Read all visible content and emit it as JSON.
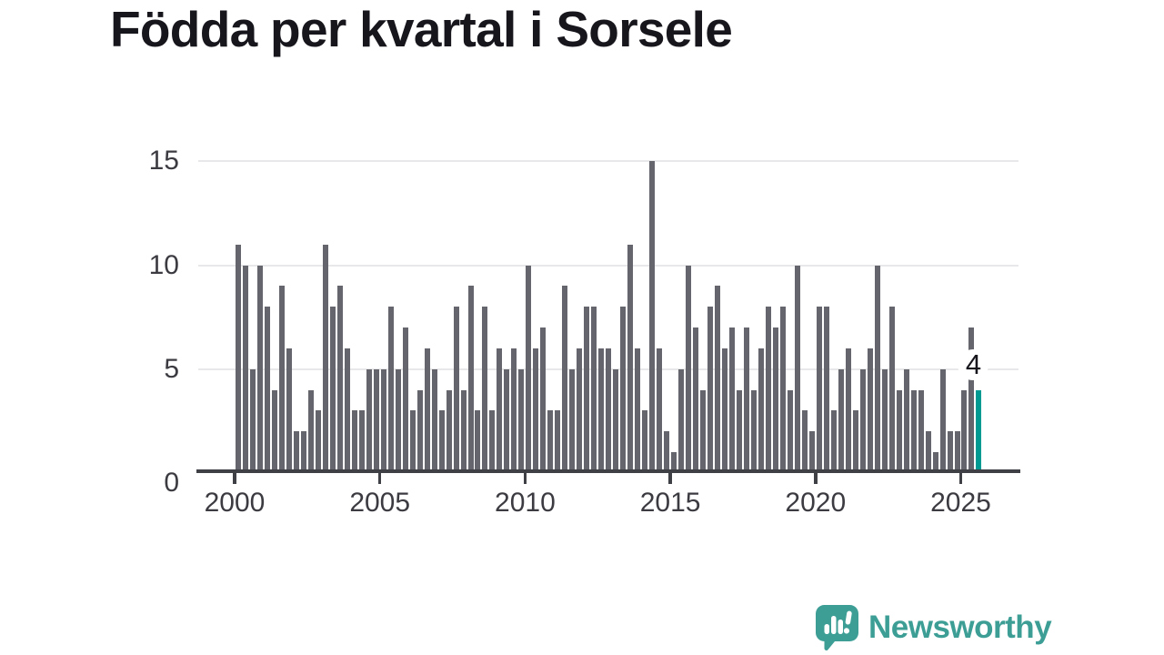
{
  "title": "Födda per kvartal i Sorsele",
  "annotation": {
    "label": "4"
  },
  "branding": {
    "name": "Newsworthy",
    "icon": "newsworthy-speech-bubble-chart-icon"
  },
  "colors": {
    "bar": "#65656d",
    "highlight": "#009a93",
    "brand": "#3d9e96",
    "grid": "#e8e8ea",
    "axis": "#3f3f46",
    "tick_text": "#3b3b41",
    "title_text": "#16161c"
  },
  "chart_data": {
    "type": "bar",
    "title": "Födda per kvartal i Sorsele",
    "xlabel": "",
    "ylabel": "",
    "period": "quarterly",
    "x_start": "2000 Q1",
    "x_end": "2025 Q3",
    "x_tick_labels": [
      "2000",
      "2005",
      "2010",
      "2015",
      "2020",
      "2025"
    ],
    "y_tick_labels": [
      "0",
      "5",
      "10",
      "15"
    ],
    "y_tick_values": [
      0,
      5,
      10,
      15
    ],
    "ylim": [
      0,
      15
    ],
    "grid": "horizontal",
    "legend": "none",
    "highlight_last": true,
    "last_value_label": "4",
    "values": [
      11,
      10,
      5,
      10,
      8,
      4,
      9,
      6,
      2,
      2,
      4,
      3,
      11,
      8,
      9,
      6,
      3,
      3,
      5,
      5,
      5,
      8,
      5,
      7,
      3,
      4,
      6,
      5,
      3,
      4,
      8,
      4,
      9,
      3,
      8,
      3,
      6,
      5,
      6,
      5,
      10,
      6,
      7,
      3,
      3,
      9,
      5,
      6,
      8,
      8,
      6,
      6,
      5,
      8,
      11,
      6,
      3,
      15,
      6,
      2,
      1,
      5,
      10,
      7,
      4,
      8,
      9,
      6,
      7,
      4,
      7,
      4,
      6,
      8,
      7,
      8,
      4,
      10,
      3,
      2,
      8,
      8,
      3,
      5,
      6,
      3,
      5,
      6,
      10,
      5,
      8,
      4,
      5,
      4,
      4,
      2,
      1,
      5,
      2,
      2,
      4,
      7,
      4
    ]
  }
}
